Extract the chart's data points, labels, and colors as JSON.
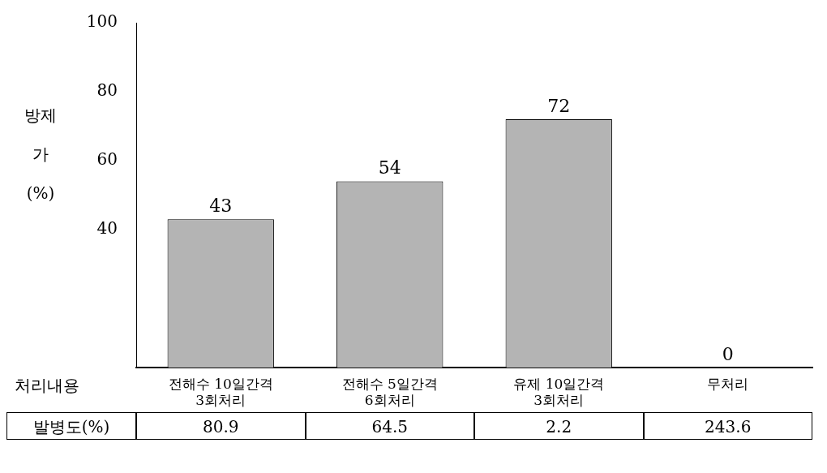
{
  "chart_data": {
    "type": "bar",
    "ylabel": "방제가 (%)",
    "categories": [
      "전해수 10일간격 3회처리",
      "전해수 5일간격 6회처리",
      "유제 10일간격 3회처리",
      "무처리"
    ],
    "values": [
      43,
      54,
      72,
      0
    ],
    "colors": [
      "#b4b4b4",
      "#b4b4b4",
      "#b4b4b4",
      "#ffffff"
    ],
    "ylim": [
      0,
      100
    ],
    "yticks": [
      40,
      60,
      80,
      100
    ],
    "grid": false,
    "legend": false,
    "data_labels": true,
    "annotations": [
      "처리내용",
      "발병도(%)",
      "80.9",
      "64.5",
      "2.2",
      "243.6"
    ]
  }
}
